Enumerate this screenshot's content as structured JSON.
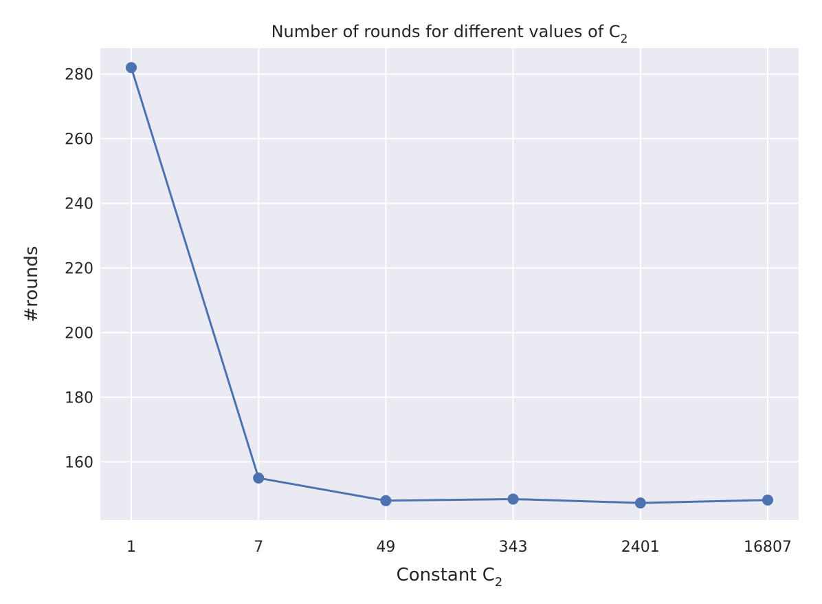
{
  "chart_data": {
    "type": "line",
    "title": "Number of rounds for different values of C",
    "title_subscript": "2",
    "xlabel": "Constant C",
    "xlabel_subscript": "2",
    "ylabel": "#rounds",
    "x_scale": "log",
    "categories": [
      "1",
      "7",
      "49",
      "343",
      "2401",
      "16807"
    ],
    "x": [
      1,
      7,
      49,
      343,
      2401,
      16807
    ],
    "series": [
      {
        "values": [
          282,
          155,
          148,
          148.5,
          147.3,
          148.2
        ]
      }
    ],
    "ylim": [
      142,
      288
    ],
    "yticks": [
      "160",
      "180",
      "200",
      "220",
      "240",
      "260",
      "280"
    ],
    "grid": true,
    "legend": "none"
  },
  "colors": {
    "plot_background": "#eaeaf2",
    "grid": "#ffffff",
    "line": "#4c72b0",
    "text": "#262626"
  }
}
